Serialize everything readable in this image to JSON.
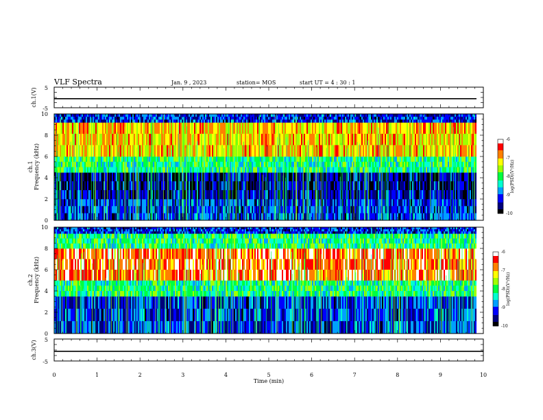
{
  "header": {
    "title": "VLF Spectra",
    "date": "Jan. 9 , 2023",
    "station": "station= MOS",
    "start": "start UT =  4 : 30 : 1"
  },
  "chart_data": [
    {
      "type": "line",
      "name": "ch1-voltage",
      "ylabel": "ch.1(V)",
      "ylim": [
        -5,
        5
      ],
      "yticks": [
        "5",
        "-5"
      ],
      "series": [
        {
          "x": [
            0,
            9.84
          ],
          "values": [
            -0.6,
            -0.6
          ]
        }
      ]
    },
    {
      "type": "heatmap",
      "name": "ch1-spectrogram",
      "ylabel": "ch.1\nFrequency (kHz)",
      "ylim": [
        0,
        10
      ],
      "yticks": [
        "0",
        "2",
        "4",
        "6",
        "8",
        "10"
      ],
      "data_end_min": 9.84,
      "bands": [
        {
          "from_khz": 0,
          "to_khz": 2,
          "level": "low"
        },
        {
          "from_khz": 2,
          "to_khz": 4.5,
          "level": "very-low"
        },
        {
          "from_khz": 4.5,
          "to_khz": 6,
          "level": "medium"
        },
        {
          "from_khz": 6,
          "to_khz": 9.2,
          "level": "high"
        },
        {
          "from_khz": 9.2,
          "to_khz": 10,
          "level": "low"
        }
      ],
      "colorbar": {
        "label": "log(PSD)(V²/Hz)",
        "range": [
          -10,
          -6
        ],
        "ticks": [
          "-6",
          "-7",
          "-8",
          "-9",
          "-10"
        ]
      }
    },
    {
      "type": "heatmap",
      "name": "ch2-spectrogram",
      "ylabel": "ch.2\nFrequency (kHz)",
      "ylim": [
        0,
        10
      ],
      "yticks": [
        "0",
        "2",
        "4",
        "6",
        "8",
        "10"
      ],
      "data_end_min": 9.84,
      "bands": [
        {
          "from_khz": 0,
          "to_khz": 3.5,
          "level": "low"
        },
        {
          "from_khz": 3.5,
          "to_khz": 5,
          "level": "medium"
        },
        {
          "from_khz": 5,
          "to_khz": 8,
          "level": "very-high"
        },
        {
          "from_khz": 8,
          "to_khz": 9.4,
          "level": "medium"
        },
        {
          "from_khz": 9.4,
          "to_khz": 10,
          "level": "low"
        }
      ],
      "colorbar": {
        "label": "log(PSD)(V²/Hz)",
        "range": [
          -10,
          -6
        ],
        "ticks": [
          "-6",
          "-7",
          "-8",
          "-9",
          "-10"
        ]
      }
    },
    {
      "type": "line",
      "name": "ch3-voltage",
      "ylabel": "ch.3(V)",
      "ylim": [
        -5,
        5
      ],
      "yticks": [
        "5",
        "-5"
      ],
      "series": [
        {
          "x": [
            0,
            10
          ],
          "values": [
            -0.6,
            -0.6
          ]
        }
      ]
    }
  ],
  "xaxis": {
    "label": "Time (min)",
    "ticks": [
      "0",
      "1",
      "2",
      "3",
      "4",
      "5",
      "6",
      "7",
      "8",
      "9",
      "10"
    ],
    "xlim": [
      0,
      10
    ]
  },
  "colors": {
    "background": "#000020",
    "palette": [
      "#000000",
      "#00007a",
      "#0000ff",
      "#00a0ff",
      "#00ffd0",
      "#00ff40",
      "#a0ff00",
      "#ffff00",
      "#ff8000",
      "#ff0000",
      "#ffffff"
    ]
  }
}
